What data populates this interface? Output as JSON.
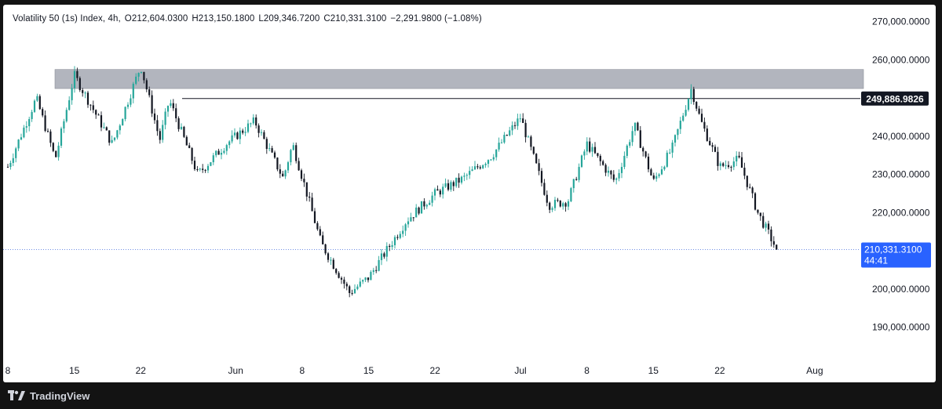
{
  "legend": {
    "symbol": "Volatility 50 (1s) Index, 4h,",
    "open": "O212,604.0300",
    "high": "H213,150.1800",
    "low": "L209,346.7200",
    "close": "C210,331.3100",
    "change": "−2,291.9800 (−1.08%)"
  },
  "price_axis": {
    "ticks": [
      "270,000.0000",
      "260,000.0000",
      "240,000.0000",
      "230,000.0000",
      "220,000.0000",
      "200,000.0000",
      "190,000.0000"
    ],
    "tick_values": [
      270000,
      260000,
      240000,
      230000,
      220000,
      200000,
      190000
    ]
  },
  "time_axis": {
    "labels": [
      "8",
      "15",
      "22",
      "Jun",
      "8",
      "15",
      "22",
      "Jul",
      "8",
      "15",
      "22",
      "Aug"
    ]
  },
  "level_label": {
    "text": "249,886.9826",
    "value": 249886.9826
  },
  "last_price_label": {
    "price": "210,331.3100",
    "countdown": "44:41",
    "value": 210331.31
  },
  "footer": {
    "brand": "TradingView"
  },
  "colors": {
    "up": "#26a69a",
    "down": "#131722",
    "zone": "#b2b5be",
    "last_price_bg": "#2962ff",
    "level_label_bg": "#131722",
    "axis_text": "#131722"
  },
  "chart_data": {
    "type": "candlestick",
    "timeframe": "4h",
    "ylim": [
      185000,
      272000
    ],
    "resistance_zone": {
      "low": 252500,
      "high": 257500
    },
    "horizontal_level": 249886.9826,
    "last_close": 210331.31,
    "price_path": [
      {
        "date": "May 8",
        "close": 232000
      },
      {
        "date": "May 11",
        "close": 250000
      },
      {
        "date": "May 13",
        "close": 234000
      },
      {
        "date": "May 15",
        "close": 256000
      },
      {
        "date": "May 19",
        "close": 238000
      },
      {
        "date": "May 22",
        "close": 258500
      },
      {
        "date": "May 24",
        "close": 239000
      },
      {
        "date": "May 25",
        "close": 249500
      },
      {
        "date": "May 28",
        "close": 230000
      },
      {
        "date": "May 31",
        "close": 238000
      },
      {
        "date": "Jun 3",
        "close": 244000
      },
      {
        "date": "Jun 6",
        "close": 229000
      },
      {
        "date": "Jun 7",
        "close": 238000
      },
      {
        "date": "Jun 10",
        "close": 212000
      },
      {
        "date": "Jun 13",
        "close": 199000
      },
      {
        "date": "Jun 15",
        "close": 203000
      },
      {
        "date": "Jun 19",
        "close": 218000
      },
      {
        "date": "Jun 22",
        "close": 225000
      },
      {
        "date": "Jun 25",
        "close": 229000
      },
      {
        "date": "Jun 28",
        "close": 235000
      },
      {
        "date": "Jul 1",
        "close": 245000
      },
      {
        "date": "Jul 4",
        "close": 222000
      },
      {
        "date": "Jul 6",
        "close": 223000
      },
      {
        "date": "Jul 8",
        "close": 238000
      },
      {
        "date": "Jul 11",
        "close": 228000
      },
      {
        "date": "Jul 13",
        "close": 243000
      },
      {
        "date": "Jul 15",
        "close": 228000
      },
      {
        "date": "Jul 17",
        "close": 237000
      },
      {
        "date": "Jul 19",
        "close": 252500
      },
      {
        "date": "Jul 20",
        "close": 244000
      },
      {
        "date": "Jul 22",
        "close": 232000
      },
      {
        "date": "Jul 24",
        "close": 234000
      },
      {
        "date": "Jul 26",
        "close": 220000
      },
      {
        "date": "Jul 28",
        "close": 210331.31
      }
    ]
  }
}
